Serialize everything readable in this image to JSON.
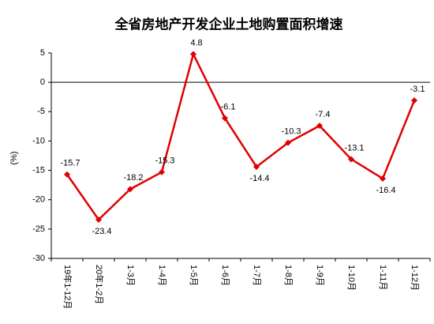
{
  "chart_data": {
    "type": "line",
    "title": "全省房地产开发企业土地购置面积增速",
    "y_label": "(%)",
    "categories": [
      "19年1-12月",
      "20年1-2月",
      "1-3月",
      "1-4月",
      "1-5月",
      "1-6月",
      "1-7月",
      "1-8月",
      "1-9月",
      "1-10月",
      "1-11月",
      "1-12月"
    ],
    "values": [
      -15.7,
      -23.4,
      -18.2,
      -15.3,
      4.8,
      -6.1,
      -14.4,
      -10.3,
      -7.4,
      -13.1,
      -16.4,
      -3.1
    ],
    "color": "#e00000",
    "ylim": [
      -30,
      5
    ],
    "yticks": [
      5,
      0,
      -5,
      -10,
      -15,
      -20,
      -25,
      -30
    ],
    "grid": false
  }
}
